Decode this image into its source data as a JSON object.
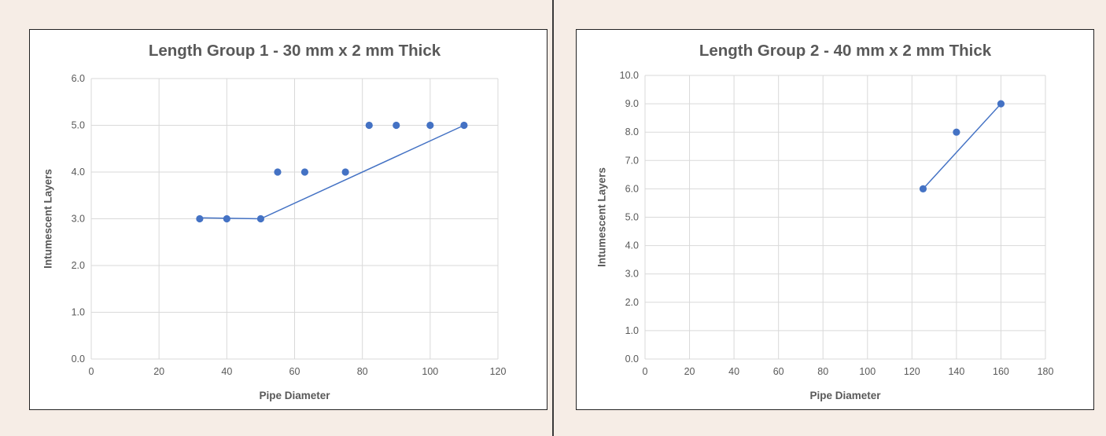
{
  "colors": {
    "page_background": "#f6ede6",
    "series": "#4472c4",
    "grid": "#d9d9d9",
    "text": "#595959"
  },
  "chart_data": [
    {
      "type": "scatter",
      "title": "Length Group 1 - 30 mm x 2 mm Thick",
      "xlabel": "Pipe Diameter",
      "ylabel": "Intumescent Layers",
      "xlim": [
        0,
        120
      ],
      "ylim": [
        0,
        6
      ],
      "x_ticks": [
        "0",
        "20",
        "40",
        "60",
        "80",
        "100",
        "120"
      ],
      "y_ticks": [
        "0.0",
        "1.0",
        "2.0",
        "3.0",
        "4.0",
        "5.0",
        "6.0"
      ],
      "grid": true,
      "legend": "none",
      "series": [
        {
          "points": [
            [
              32,
              3
            ],
            [
              40,
              3
            ],
            [
              50,
              3
            ],
            [
              55,
              4
            ],
            [
              63,
              4
            ],
            [
              75,
              4
            ],
            [
              82,
              5
            ],
            [
              90,
              5
            ],
            [
              100,
              5
            ],
            [
              110,
              5
            ]
          ]
        }
      ],
      "line": [
        [
          32,
          3.02
        ],
        [
          50,
          3.0
        ],
        [
          110,
          5.0
        ]
      ]
    },
    {
      "type": "scatter",
      "title": "Length Group 2 - 40 mm x 2 mm Thick",
      "xlabel": "Pipe Diameter",
      "ylabel": "Intumescent Layers",
      "xlim": [
        0,
        180
      ],
      "ylim": [
        0,
        10
      ],
      "x_ticks": [
        "0",
        "20",
        "40",
        "60",
        "80",
        "100",
        "120",
        "140",
        "160",
        "180"
      ],
      "y_ticks": [
        "0.0",
        "1.0",
        "2.0",
        "3.0",
        "4.0",
        "5.0",
        "6.0",
        "7.0",
        "8.0",
        "9.0",
        "10.0"
      ],
      "grid": true,
      "legend": "none",
      "series": [
        {
          "points": [
            [
              125,
              6
            ],
            [
              140,
              8
            ],
            [
              160,
              9
            ]
          ]
        }
      ],
      "line": [
        [
          125,
          6
        ],
        [
          160,
          9
        ]
      ]
    }
  ]
}
